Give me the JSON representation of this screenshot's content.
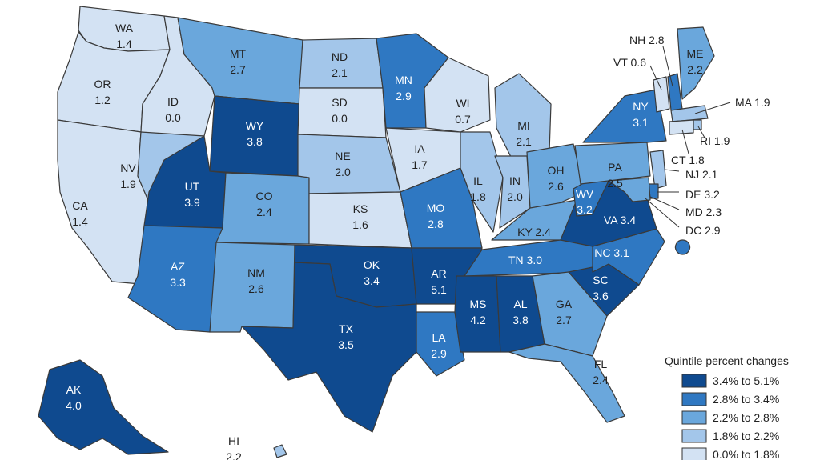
{
  "legend": {
    "title": "Quintile percent changes",
    "items": [
      {
        "label": "3.4% to 5.1%",
        "color": "#0f4a8f"
      },
      {
        "label": "2.8% to 3.4%",
        "color": "#2f78c2"
      },
      {
        "label": "2.2% to 2.8%",
        "color": "#6aa7dc"
      },
      {
        "label": "1.8% to 2.2%",
        "color": "#a3c6ea"
      },
      {
        "label": "0.0% to 1.8%",
        "color": "#d3e2f3"
      }
    ]
  },
  "states": [
    {
      "abbr": "WA",
      "value": "1.4",
      "bin": 4
    },
    {
      "abbr": "OR",
      "value": "1.2",
      "bin": 4
    },
    {
      "abbr": "CA",
      "value": "1.4",
      "bin": 4
    },
    {
      "abbr": "ID",
      "value": "0.0",
      "bin": 4
    },
    {
      "abbr": "NV",
      "value": "1.9",
      "bin": 3
    },
    {
      "abbr": "MT",
      "value": "2.7",
      "bin": 2
    },
    {
      "abbr": "WY",
      "value": "3.8",
      "bin": 0
    },
    {
      "abbr": "UT",
      "value": "3.9",
      "bin": 0
    },
    {
      "abbr": "AZ",
      "value": "3.3",
      "bin": 1
    },
    {
      "abbr": "CO",
      "value": "2.4",
      "bin": 2
    },
    {
      "abbr": "NM",
      "value": "2.6",
      "bin": 2
    },
    {
      "abbr": "ND",
      "value": "2.1",
      "bin": 3
    },
    {
      "abbr": "SD",
      "value": "0.0",
      "bin": 4
    },
    {
      "abbr": "NE",
      "value": "2.0",
      "bin": 3
    },
    {
      "abbr": "KS",
      "value": "1.6",
      "bin": 4
    },
    {
      "abbr": "OK",
      "value": "3.4",
      "bin": 0
    },
    {
      "abbr": "TX",
      "value": "3.5",
      "bin": 0
    },
    {
      "abbr": "MN",
      "value": "2.9",
      "bin": 1
    },
    {
      "abbr": "IA",
      "value": "1.7",
      "bin": 4
    },
    {
      "abbr": "MO",
      "value": "2.8",
      "bin": 1
    },
    {
      "abbr": "AR",
      "value": "5.1",
      "bin": 0
    },
    {
      "abbr": "LA",
      "value": "2.9",
      "bin": 1
    },
    {
      "abbr": "WI",
      "value": "0.7",
      "bin": 4
    },
    {
      "abbr": "IL",
      "value": "1.8",
      "bin": 3
    },
    {
      "abbr": "MI",
      "value": "2.1",
      "bin": 3
    },
    {
      "abbr": "IN",
      "value": "2.0",
      "bin": 3
    },
    {
      "abbr": "OH",
      "value": "2.6",
      "bin": 2
    },
    {
      "abbr": "KY",
      "value": "2.4",
      "bin": 2
    },
    {
      "abbr": "TN",
      "value": "3.0",
      "bin": 1
    },
    {
      "abbr": "MS",
      "value": "4.2",
      "bin": 0
    },
    {
      "abbr": "AL",
      "value": "3.8",
      "bin": 0
    },
    {
      "abbr": "GA",
      "value": "2.7",
      "bin": 2
    },
    {
      "abbr": "FL",
      "value": "2.4",
      "bin": 2
    },
    {
      "abbr": "SC",
      "value": "3.6",
      "bin": 0
    },
    {
      "abbr": "NC",
      "value": "3.1",
      "bin": 1
    },
    {
      "abbr": "VA",
      "value": "3.4",
      "bin": 0
    },
    {
      "abbr": "WV",
      "value": "3.2",
      "bin": 1
    },
    {
      "abbr": "PA",
      "value": "2.5",
      "bin": 2
    },
    {
      "abbr": "NY",
      "value": "3.1",
      "bin": 1
    },
    {
      "abbr": "NJ",
      "value": "2.1",
      "bin": 3
    },
    {
      "abbr": "DE",
      "value": "3.2",
      "bin": 1
    },
    {
      "abbr": "MD",
      "value": "2.3",
      "bin": 2
    },
    {
      "abbr": "DC",
      "value": "2.9",
      "bin": 1
    },
    {
      "abbr": "VT",
      "value": "0.6",
      "bin": 4
    },
    {
      "abbr": "NH",
      "value": "2.8",
      "bin": 1
    },
    {
      "abbr": "ME",
      "value": "2.2",
      "bin": 2
    },
    {
      "abbr": "MA",
      "value": "1.9",
      "bin": 3
    },
    {
      "abbr": "RI",
      "value": "1.9",
      "bin": 3
    },
    {
      "abbr": "CT",
      "value": "1.8",
      "bin": 4
    },
    {
      "abbr": "AK",
      "value": "4.0",
      "bin": 0
    },
    {
      "abbr": "HI",
      "value": "2.2",
      "bin": 3
    }
  ]
}
